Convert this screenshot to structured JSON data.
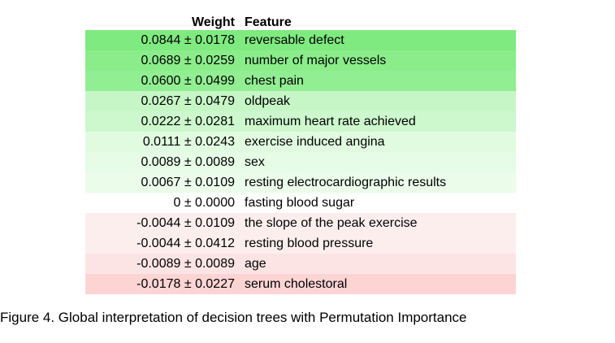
{
  "chart_data": {
    "type": "table",
    "columns": [
      "Weight",
      "Feature"
    ],
    "rows": [
      {
        "weight": "0.0844 ± 0.0178",
        "value": 0.0844,
        "std": 0.0178,
        "feature": "reversable defect",
        "color": "#7fea7f"
      },
      {
        "weight": "0.0689 ± 0.0259",
        "value": 0.0689,
        "std": 0.0259,
        "feature": "number of major vessels",
        "color": "#8aed8a"
      },
      {
        "weight": "0.0600 ± 0.0499",
        "value": 0.06,
        "std": 0.0499,
        "feature": "chest pain",
        "color": "#92ee92"
      },
      {
        "weight": "0.0267 ± 0.0479",
        "value": 0.0267,
        "std": 0.0479,
        "feature": "oldpeak",
        "color": "#c6f6c6"
      },
      {
        "weight": "0.0222 ± 0.0281",
        "value": 0.0222,
        "std": 0.0281,
        "feature": "maximum heart rate achieved",
        "color": "#cdf7cd"
      },
      {
        "weight": "0.0111 ± 0.0243",
        "value": 0.0111,
        "std": 0.0243,
        "feature": "exercise induced angina",
        "color": "#e1fbe1"
      },
      {
        "weight": "0.0089 ± 0.0089",
        "value": 0.0089,
        "std": 0.0089,
        "feature": "sex",
        "color": "#e6fce6"
      },
      {
        "weight": "0.0067 ± 0.0109",
        "value": 0.0067,
        "std": 0.0109,
        "feature": "resting electrocardiographic results",
        "color": "#ebfceb"
      },
      {
        "weight": "0 ± 0.0000",
        "value": 0,
        "std": 0,
        "feature": "fasting blood sugar",
        "color": "#ffffff"
      },
      {
        "weight": "-0.0044 ± 0.0109",
        "value": -0.0044,
        "std": 0.0109,
        "feature": "the slope of the peak exercise",
        "color": "#fdeeee"
      },
      {
        "weight": "-0.0044 ± 0.0412",
        "value": -0.0044,
        "std": 0.0412,
        "feature": "resting blood pressure",
        "color": "#fdeeee"
      },
      {
        "weight": "-0.0089 ± 0.0089",
        "value": -0.0089,
        "std": 0.0089,
        "feature": "age",
        "color": "#fde4e4"
      },
      {
        "weight": "-0.0178 ± 0.0227",
        "value": -0.0178,
        "std": 0.0227,
        "feature": "serum cholestoral",
        "color": "#fcd4d4"
      }
    ]
  },
  "caption": "Figure 4. Global interpretation of decision trees with Permutation Importance"
}
